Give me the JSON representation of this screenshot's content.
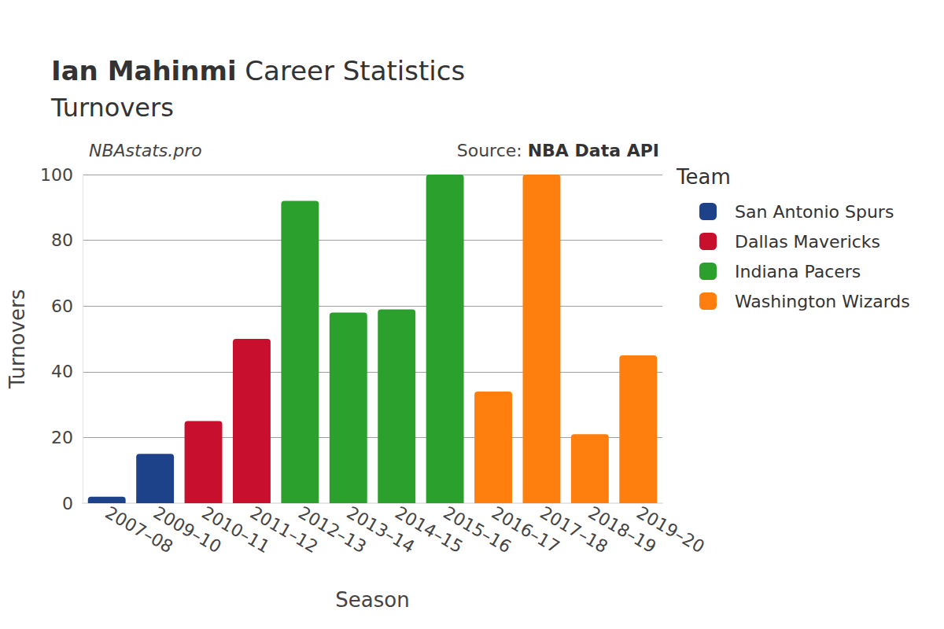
{
  "chart_data": {
    "type": "bar",
    "title": "Ian Mahinmi Career Statistics",
    "subtitle": "Turnovers",
    "annotations": [
      "NBAstats.pro",
      "Source: NBA Data API"
    ],
    "legend_title": "Team",
    "x_label": "Season",
    "y_label": "Turnovers",
    "categories": [
      "2007–08",
      "2009–10",
      "2010–11",
      "2011–12",
      "2012–13",
      "2013–14",
      "2014–15",
      "2015–16",
      "2016–17",
      "2017–18",
      "2018–19",
      "2019–20"
    ],
    "series": [
      {
        "name": "San Antonio Spurs",
        "color": "#1d428a",
        "values": [
          2,
          15,
          null,
          null,
          null,
          null,
          null,
          null,
          null,
          null,
          null,
          null
        ]
      },
      {
        "name": "Dallas Mavericks",
        "color": "#c8102e",
        "values": [
          null,
          null,
          25,
          50,
          null,
          null,
          null,
          null,
          null,
          null,
          null,
          null
        ]
      },
      {
        "name": "Indiana Pacers",
        "color": "#2ca02c",
        "values": [
          null,
          null,
          null,
          null,
          92,
          58,
          59,
          100,
          null,
          null,
          null,
          null
        ]
      },
      {
        "name": "Washington Wizards",
        "color": "#ff7f0e",
        "values": [
          null,
          null,
          null,
          null,
          null,
          null,
          null,
          null,
          34,
          100,
          21,
          45
        ]
      }
    ],
    "ylim": [
      0,
      100
    ],
    "yticks": [
      0,
      20,
      40,
      60,
      80,
      100
    ],
    "grid": true,
    "stacked": true,
    "legend": "right"
  }
}
